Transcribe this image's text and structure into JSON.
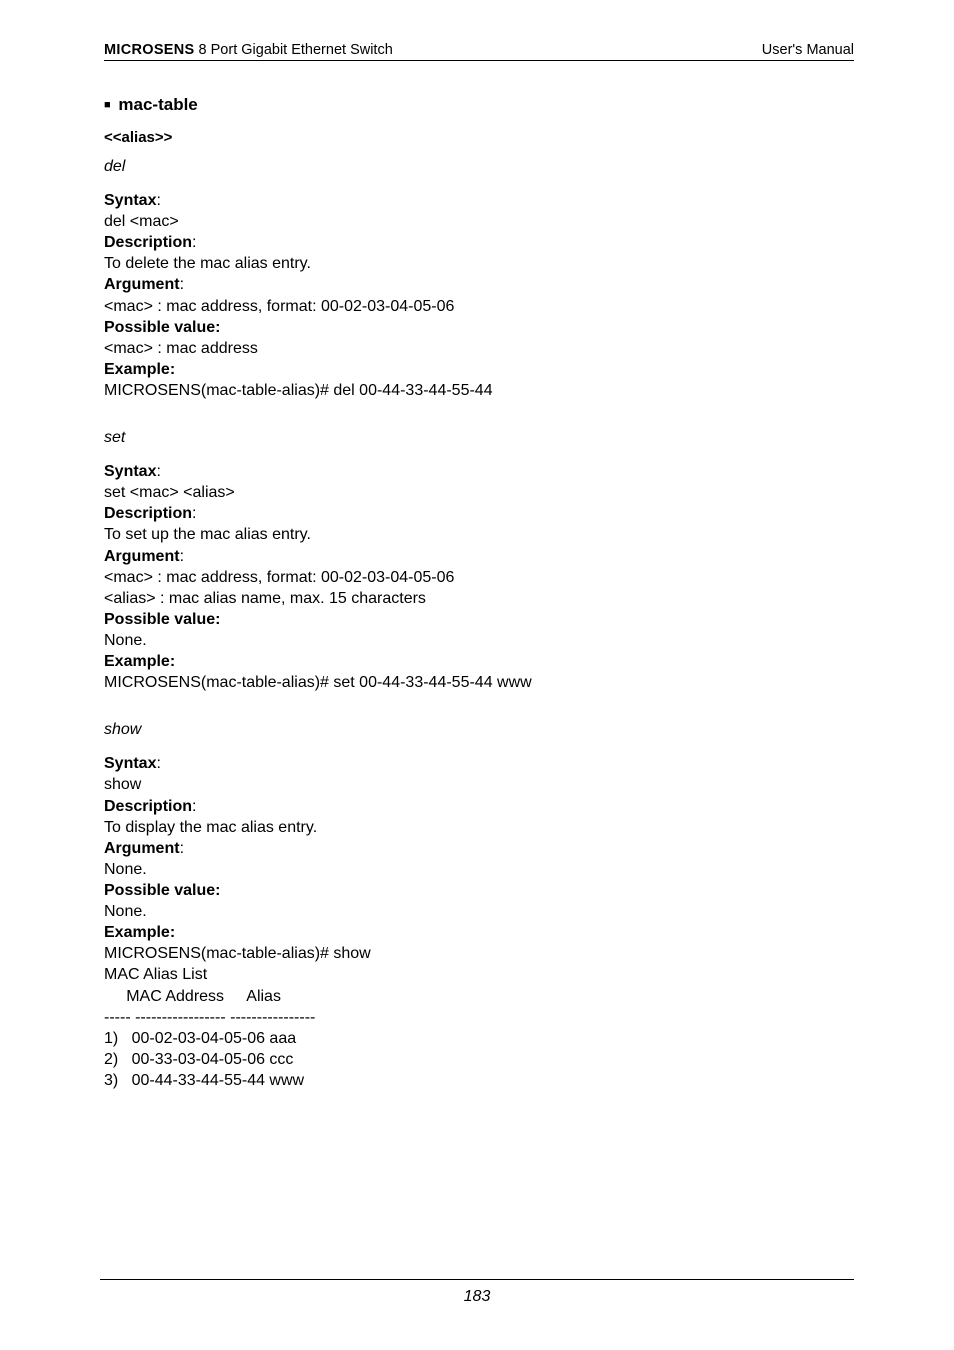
{
  "header": {
    "brand": "MICROSENS",
    "product": " 8 Port Gigabit Ethernet Switch",
    "right": "User's Manual"
  },
  "section": {
    "title": "mac-table",
    "subhead": "<<alias>>"
  },
  "labels": {
    "syntax": "Syntax",
    "description": "Description",
    "argument": "Argument",
    "possible_value": "Possible value:",
    "example": "Example:"
  },
  "cmds": [
    {
      "name": "del",
      "syntax": "del <mac>",
      "description": "To delete the mac alias entry.",
      "argument": [
        "<mac> : mac address, format: 00-02-03-04-05-06"
      ],
      "possible_value": [
        "<mac> : mac address"
      ],
      "example": [
        "MICROSENS(mac-table-alias)# del 00-44-33-44-55-44"
      ]
    },
    {
      "name": "set",
      "syntax": "set <mac> <alias>",
      "description": "To set up the mac alias entry.",
      "argument": [
        "<mac> : mac address, format: 00-02-03-04-05-06",
        "<alias> : mac alias name, max. 15 characters"
      ],
      "possible_value": [
        "None."
      ],
      "example": [
        "MICROSENS(mac-table-alias)# set 00-44-33-44-55-44 www"
      ]
    },
    {
      "name": "show",
      "syntax": "show",
      "description": "To display the mac alias entry.",
      "argument": [
        "None."
      ],
      "possible_value": [
        "None."
      ],
      "example": [
        "MICROSENS(mac-table-alias)# show",
        "MAC Alias List",
        "     MAC Address     Alias",
        "----- ----------------- ----------------",
        "1)   00-02-03-04-05-06 aaa",
        "2)   00-33-03-04-05-06 ccc",
        "3)   00-44-33-44-55-44 www"
      ]
    }
  ],
  "footer": {
    "page": "183"
  }
}
